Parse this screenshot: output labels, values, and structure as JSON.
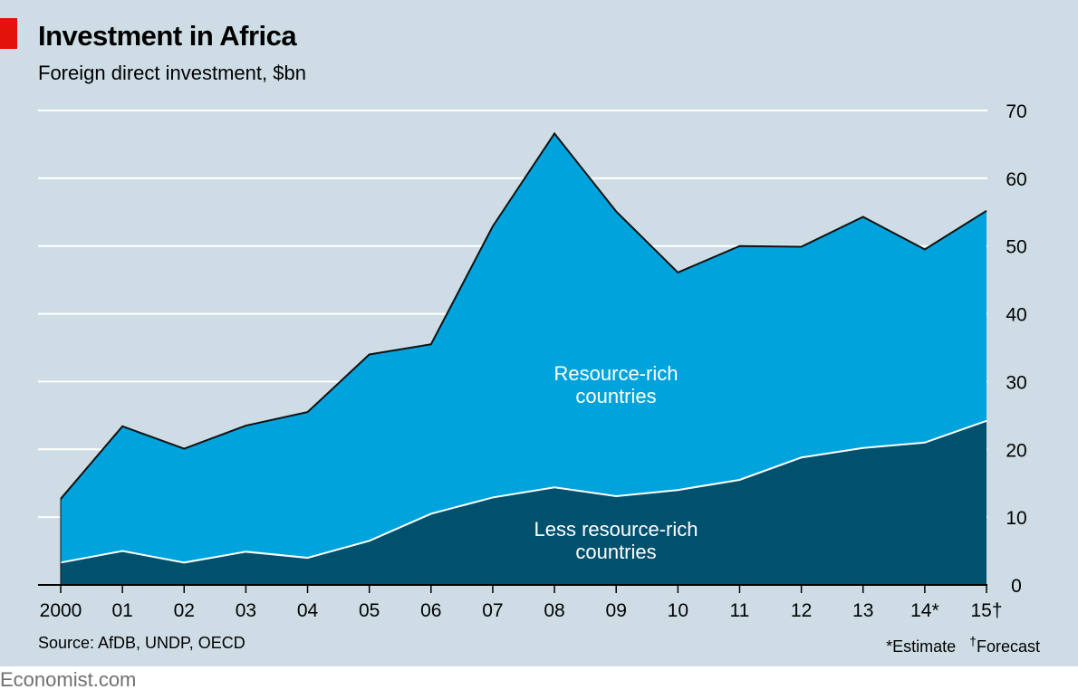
{
  "header": {
    "title": "Investment in Africa",
    "subtitle": "Foreign direct investment, $bn"
  },
  "footer": {
    "source": "Source: AfDB, UNDP, OECD",
    "estimate_note": "*Estimate",
    "forecast_mark": "†",
    "forecast_note": "Forecast"
  },
  "watermark": "Economist.com",
  "colors": {
    "background": "#cedde5",
    "resource_rich": "#00a3dc",
    "less_resource_rich": "#00516e",
    "grid": "#ffffff",
    "brand_red": "#e3120b"
  },
  "chart_data": {
    "type": "area",
    "stacked": true,
    "title": "Investment in Africa",
    "subtitle": "Foreign direct investment, $bn",
    "categories": [
      "2000",
      "01",
      "02",
      "03",
      "04",
      "05",
      "06",
      "07",
      "08",
      "09",
      "10",
      "11",
      "12",
      "13",
      "14*",
      "15†"
    ],
    "series": [
      {
        "name": "Less resource-rich countries",
        "values": [
          3.3,
          5.0,
          3.3,
          4.9,
          4.0,
          6.5,
          10.5,
          12.9,
          14.4,
          13.1,
          14.0,
          15.5,
          18.8,
          20.2,
          21.0,
          24.2
        ]
      },
      {
        "name": "Resource-rich countries",
        "values": [
          9.4,
          18.4,
          16.8,
          18.6,
          21.5,
          27.5,
          25.0,
          40.0,
          52.2,
          42.0,
          32.1,
          34.5,
          31.1,
          34.1,
          28.5,
          31.0
        ]
      }
    ],
    "totals": [
      12.7,
      23.4,
      20.1,
      23.5,
      25.5,
      34.0,
      35.5,
      52.9,
      66.6,
      55.1,
      46.1,
      50.0,
      49.9,
      54.3,
      49.5,
      55.2
    ],
    "ylim": [
      0,
      70
    ],
    "yticks": [
      "0",
      "10",
      "20",
      "30",
      "40",
      "50",
      "60",
      "70"
    ],
    "grid": true,
    "y_axis_side": "right",
    "labels": [
      {
        "lines": [
          "Resource-rich",
          "countries"
        ]
      },
      {
        "lines": [
          "Less resource-rich",
          "countries"
        ]
      }
    ]
  }
}
